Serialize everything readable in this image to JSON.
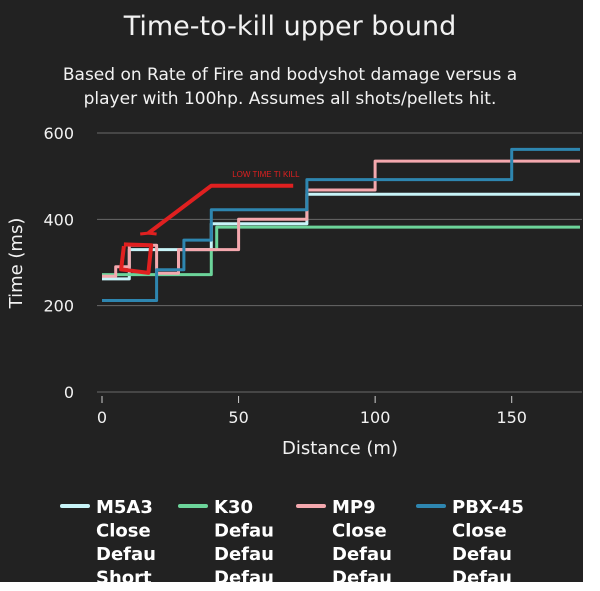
{
  "chart_data": {
    "type": "line",
    "step": true,
    "title": "Time-to-kill upper bound",
    "subtitle_lines": [
      "Based on Rate of Fire and bodyshot damage versus a",
      "player with 100hp. Assumes all shots/pellets hit."
    ],
    "xlabel": "Distance (m)",
    "ylabel": "Time (ms)",
    "xlim": [
      -3,
      177
    ],
    "ylim": [
      0,
      600
    ],
    "xticks": [
      0,
      50,
      100,
      150
    ],
    "yticks": [
      0,
      200,
      400,
      600
    ],
    "grid": "horizontal",
    "legend_position": "bottom",
    "series": [
      {
        "name": "M5A3",
        "legend_lines": [
          "M5A3",
          "Close",
          "Defau",
          "Short"
        ],
        "color": "#c8f4f8",
        "points": [
          [
            0,
            262
          ],
          [
            10,
            262
          ],
          [
            10,
            330
          ],
          [
            40,
            330
          ],
          [
            40,
            390
          ],
          [
            75,
            390
          ],
          [
            75,
            458
          ],
          [
            175,
            458
          ]
        ]
      },
      {
        "name": "K30",
        "legend_lines": [
          "K30",
          "Defau",
          "Defau",
          "Defau"
        ],
        "color": "#6cd49a",
        "points": [
          [
            0,
            272
          ],
          [
            40,
            272
          ],
          [
            40,
            330
          ],
          [
            42,
            330
          ],
          [
            42,
            382
          ],
          [
            175,
            382
          ]
        ]
      },
      {
        "name": "MP9",
        "legend_lines": [
          "MP9",
          "Close",
          "Defau",
          "Defau"
        ],
        "color": "#f4a8ae",
        "points": [
          [
            0,
            268
          ],
          [
            5,
            268
          ],
          [
            5,
            290
          ],
          [
            10,
            290
          ],
          [
            10,
            340
          ],
          [
            20,
            340
          ],
          [
            20,
            275
          ],
          [
            28,
            275
          ],
          [
            28,
            330
          ],
          [
            50,
            330
          ],
          [
            50,
            400
          ],
          [
            75,
            400
          ],
          [
            75,
            468
          ],
          [
            100,
            468
          ],
          [
            100,
            535
          ],
          [
            175,
            535
          ]
        ]
      },
      {
        "name": "PBX-45",
        "legend_lines": [
          "PBX-45",
          "Close",
          "Defau",
          "Defau"
        ],
        "color": "#2e86b0",
        "points": [
          [
            0,
            212
          ],
          [
            20,
            212
          ],
          [
            20,
            283
          ],
          [
            30,
            283
          ],
          [
            30,
            352
          ],
          [
            40,
            352
          ],
          [
            40,
            422
          ],
          [
            75,
            422
          ],
          [
            75,
            492
          ],
          [
            150,
            492
          ],
          [
            150,
            562
          ],
          [
            175,
            562
          ]
        ]
      }
    ]
  },
  "annotation": {
    "text": "LOW TIME TI KILL",
    "color": "#e02020",
    "arrow_path": [
      [
        70,
        478
      ],
      [
        40,
        478
      ],
      [
        17,
        368
      ]
    ],
    "arrow_head": [
      [
        14,
        366
      ],
      [
        20,
        366
      ]
    ],
    "bracket_path": [
      [
        8,
        338
      ],
      [
        7,
        284
      ],
      [
        17,
        276
      ],
      [
        18,
        340
      ],
      [
        8,
        342
      ]
    ],
    "label_anchor": [
      60,
      498
    ]
  }
}
